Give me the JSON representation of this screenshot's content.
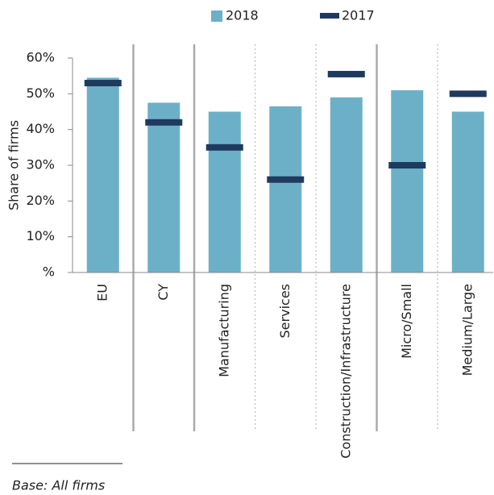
{
  "chart_data": {
    "type": "bar",
    "categories": [
      "EU",
      "CY",
      "Manufacturing",
      "Services",
      "Construction/Infrastructure",
      "Micro/Small",
      "Medium/Large"
    ],
    "series": [
      {
        "name": "2018",
        "color": "#6cb0c8",
        "values": [
          54.5,
          47.5,
          45,
          46.5,
          49,
          51,
          45
        ]
      },
      {
        "name": "2017",
        "color": "#1f3a5f",
        "values": [
          53,
          42,
          35,
          26,
          55.5,
          30,
          50
        ]
      }
    ],
    "y_label": "Share of firms",
    "ylim": [
      0,
      60
    ],
    "yticks": [
      {
        "value": 0,
        "label": "%"
      },
      {
        "value": 10,
        "label": "10%"
      },
      {
        "value": 20,
        "label": "20%"
      },
      {
        "value": 30,
        "label": "30%"
      },
      {
        "value": 40,
        "label": "40%"
      },
      {
        "value": 50,
        "label": "50%"
      },
      {
        "value": 60,
        "label": "60%"
      }
    ],
    "legend": "top",
    "note": "Base: All firms"
  }
}
